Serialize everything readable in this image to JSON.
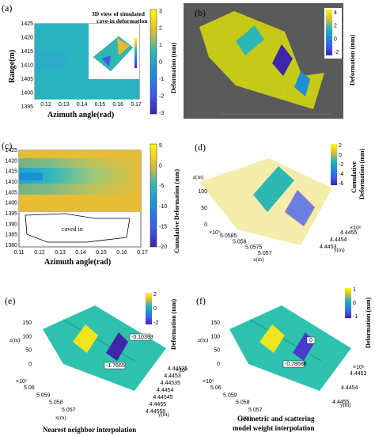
{
  "panels": {
    "a": {
      "label": "(a)",
      "inset_title": "3D view of simulated cave-in deformation",
      "xlabel": "Azimuth angle(rad)",
      "ylabel": "Range(m)",
      "xticks": [
        "0.12",
        "0.13",
        "0.14",
        "0.15",
        "0.16",
        "0.17"
      ],
      "yticks": [
        "1425",
        "1420",
        "1415",
        "1410",
        "1405",
        "1400",
        "1395"
      ],
      "cbar_label": "Deformation (mm)",
      "cbar_ticks": [
        "3",
        "2",
        "1",
        "0",
        "-1",
        "-2",
        "-3"
      ]
    },
    "b": {
      "label": "(b)",
      "cbar_label": "Deformation (mm)",
      "cbar_ticks": [
        "4",
        "2",
        "0",
        "-2"
      ]
    },
    "c": {
      "label": "(c)",
      "xlabel": "Azimuth angle(rad)",
      "ylabel": "Range(m)",
      "xticks": [
        "0.11",
        "0.12",
        "0.13",
        "0.14",
        "0.15",
        "0.16",
        "0.17"
      ],
      "yticks": [
        "1425",
        "1420",
        "1415",
        "1410",
        "1405",
        "1400",
        "1395",
        "1390",
        "1385",
        "1380"
      ],
      "region_label": "caved in",
      "cbar_label": "Cumulative Deformation (mm)",
      "cbar_ticks": [
        "5",
        "0",
        "-5",
        "-10",
        "-15",
        "-20"
      ]
    },
    "d": {
      "label": "(d)",
      "cbar_label_line1": "Cumulative",
      "cbar_label_line2": "Deformation (mm)",
      "cbar_ticks": [
        "2",
        "0",
        "-2",
        "-4",
        "-6"
      ],
      "zticks": [
        "100",
        "50",
        "0"
      ],
      "z_label": "z(m)",
      "x_exp": "×10⁵",
      "x_ticks": [
        "5.0585",
        "5.058",
        "5.0575",
        "5.057"
      ],
      "x_label": "x(m)",
      "y_exp": "×10⁶",
      "y_ticks": [
        "4.4453",
        "4.4454",
        "4.4455"
      ],
      "y_label": "y(m)"
    },
    "e": {
      "label": "(e)",
      "cbar_label": "Deformation (mm)",
      "cbar_ticks": [
        "2",
        "0",
        "-2"
      ],
      "zticks": [
        "150",
        "100",
        "50",
        "0"
      ],
      "z_label": "z(m)",
      "x_exp": "×10⁵",
      "x_ticks": [
        "5.06",
        "5.059",
        "5.058",
        "5.057"
      ],
      "x_label": "x(m)",
      "y_exp": "×10⁶",
      "y_ticks": [
        "4.44525",
        "4.4453",
        "4.44535",
        "4.4454",
        "4.44545",
        "4.4455",
        "4.44555"
      ],
      "y_label": "y(m)",
      "datatip_1": "-0.10393",
      "datatip_2": "-1.7665",
      "caption": "Nearest neighbor interpolation"
    },
    "f": {
      "label": "(f)",
      "cbar_label": "Deformation (mm)",
      "cbar_ticks": [
        "1",
        "0",
        "-1"
      ],
      "zticks": [
        "150",
        "100",
        "50",
        "0"
      ],
      "z_label": "z(m)",
      "x_exp": "×10⁵",
      "x_ticks": [
        "5.06",
        "5.059",
        "5.058",
        "5.057"
      ],
      "x_label": "x(m)",
      "y_exp": "×10⁶",
      "y_ticks": [
        "4.4453",
        "4.4454",
        "4.4455"
      ],
      "y_label": "y(m)",
      "datatip_1": "0",
      "datatip_2": "-0.78688",
      "caption_line1": "Geometric and scattering",
      "caption_line2": "model weight interpolation"
    }
  }
}
